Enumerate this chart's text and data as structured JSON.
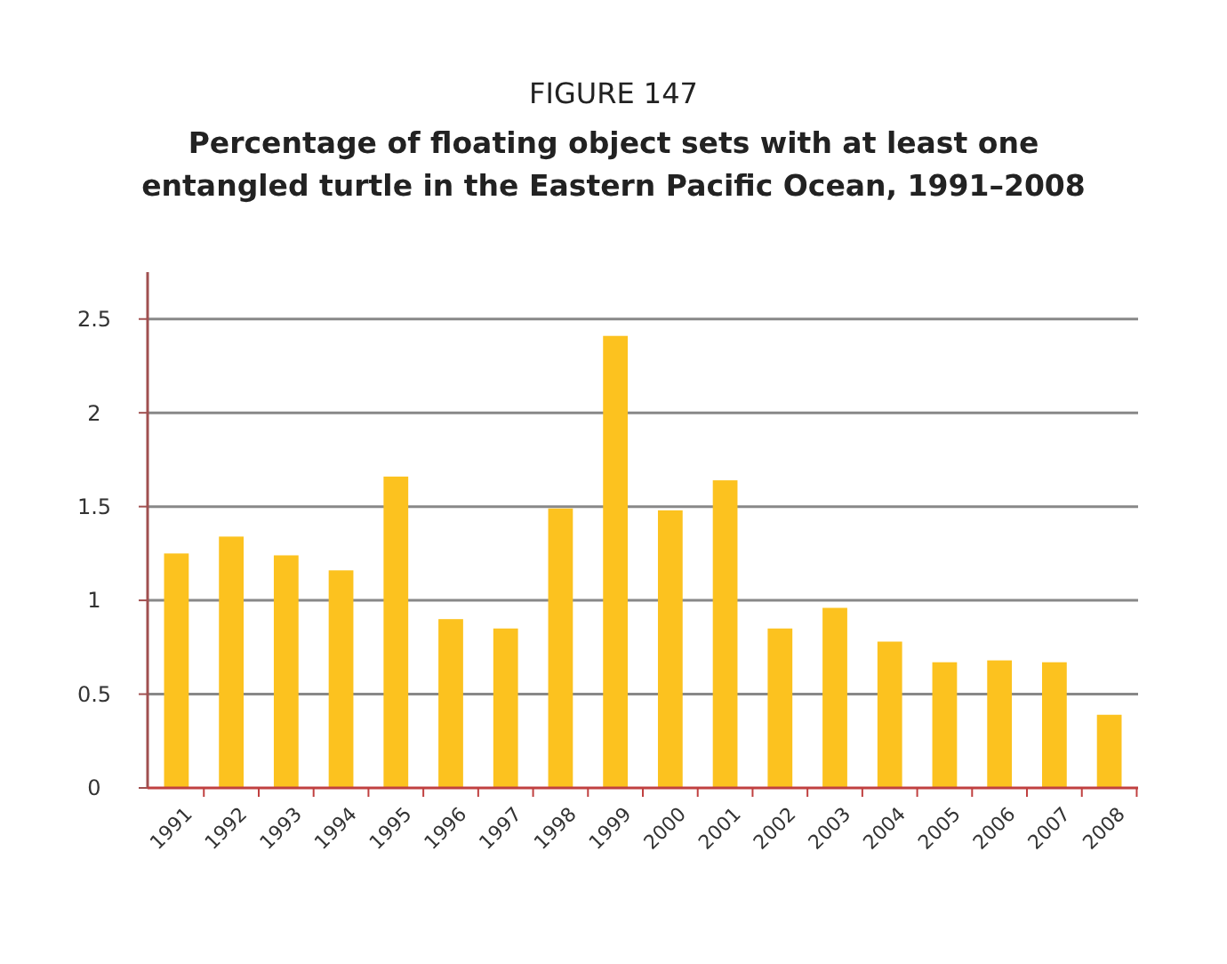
{
  "chart_data": {
    "type": "bar",
    "title": "FIGURE 147",
    "subtitle": "Percentage of floating object sets with at least one entangled turtle in the Eastern Pacific Ocean, 1991–2008",
    "categories": [
      "1991",
      "1992",
      "1993",
      "1994",
      "1995",
      "1996",
      "1997",
      "1998",
      "1999",
      "2000",
      "2001",
      "2002",
      "2003",
      "2004",
      "2005",
      "2006",
      "2007",
      "2008"
    ],
    "values": [
      1.25,
      1.34,
      1.24,
      1.16,
      1.66,
      0.9,
      0.85,
      1.49,
      2.41,
      1.48,
      1.64,
      0.85,
      0.96,
      0.78,
      0.67,
      0.68,
      0.67,
      0.39
    ],
    "color": "#fcc21f",
    "ylim": [
      0,
      2.75
    ],
    "yticks": [
      0,
      0.5,
      {
        "value": 1,
        "label": "1"
      },
      1.5,
      2,
      2.5
    ],
    "grid": "y"
  }
}
